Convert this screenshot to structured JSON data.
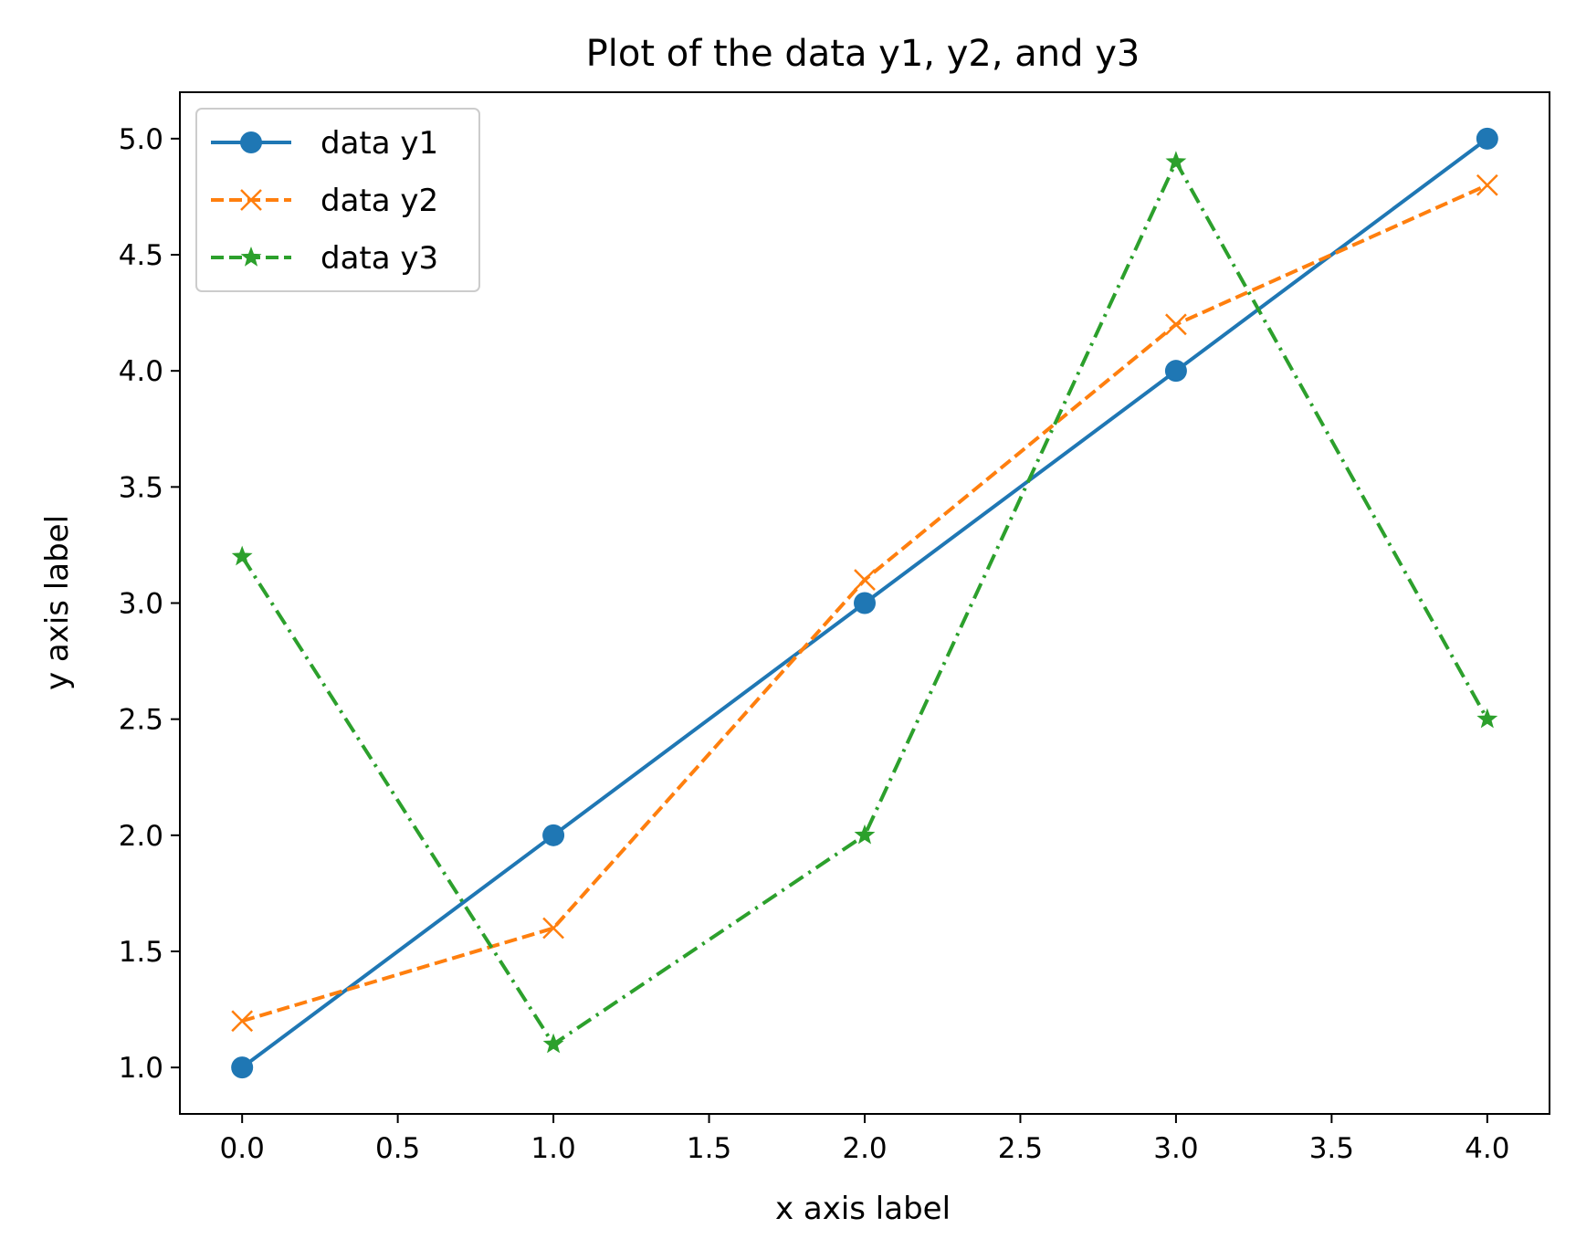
{
  "chart_data": {
    "type": "line",
    "title": "Plot of the data y1, y2, and y3",
    "xlabel": "x axis label",
    "ylabel": "y axis label",
    "xlim": [
      -0.2,
      4.2
    ],
    "ylim": [
      0.8,
      5.2
    ],
    "xticks": [
      "0.0",
      "0.5",
      "1.0",
      "1.5",
      "2.0",
      "2.5",
      "3.0",
      "3.5",
      "4.0"
    ],
    "yticks": [
      "1.0",
      "1.5",
      "2.0",
      "2.5",
      "3.0",
      "3.5",
      "4.0",
      "4.5",
      "5.0"
    ],
    "grid": false,
    "legend_position": "upper left",
    "x": [
      0,
      1,
      2,
      3,
      4
    ],
    "series": [
      {
        "name": "data y1",
        "values": [
          1.0,
          2.0,
          3.0,
          4.0,
          5.0
        ],
        "color": "#1f77b4",
        "linestyle": "solid",
        "marker": "circle"
      },
      {
        "name": "data y2",
        "values": [
          1.2,
          1.6,
          3.1,
          4.2,
          4.8
        ],
        "color": "#ff7f0e",
        "linestyle": "dashed",
        "marker": "x"
      },
      {
        "name": "data y3",
        "values": [
          3.2,
          1.1,
          2.0,
          4.9,
          2.5
        ],
        "color": "#2ca02c",
        "linestyle": "dashdot",
        "marker": "star"
      }
    ]
  }
}
